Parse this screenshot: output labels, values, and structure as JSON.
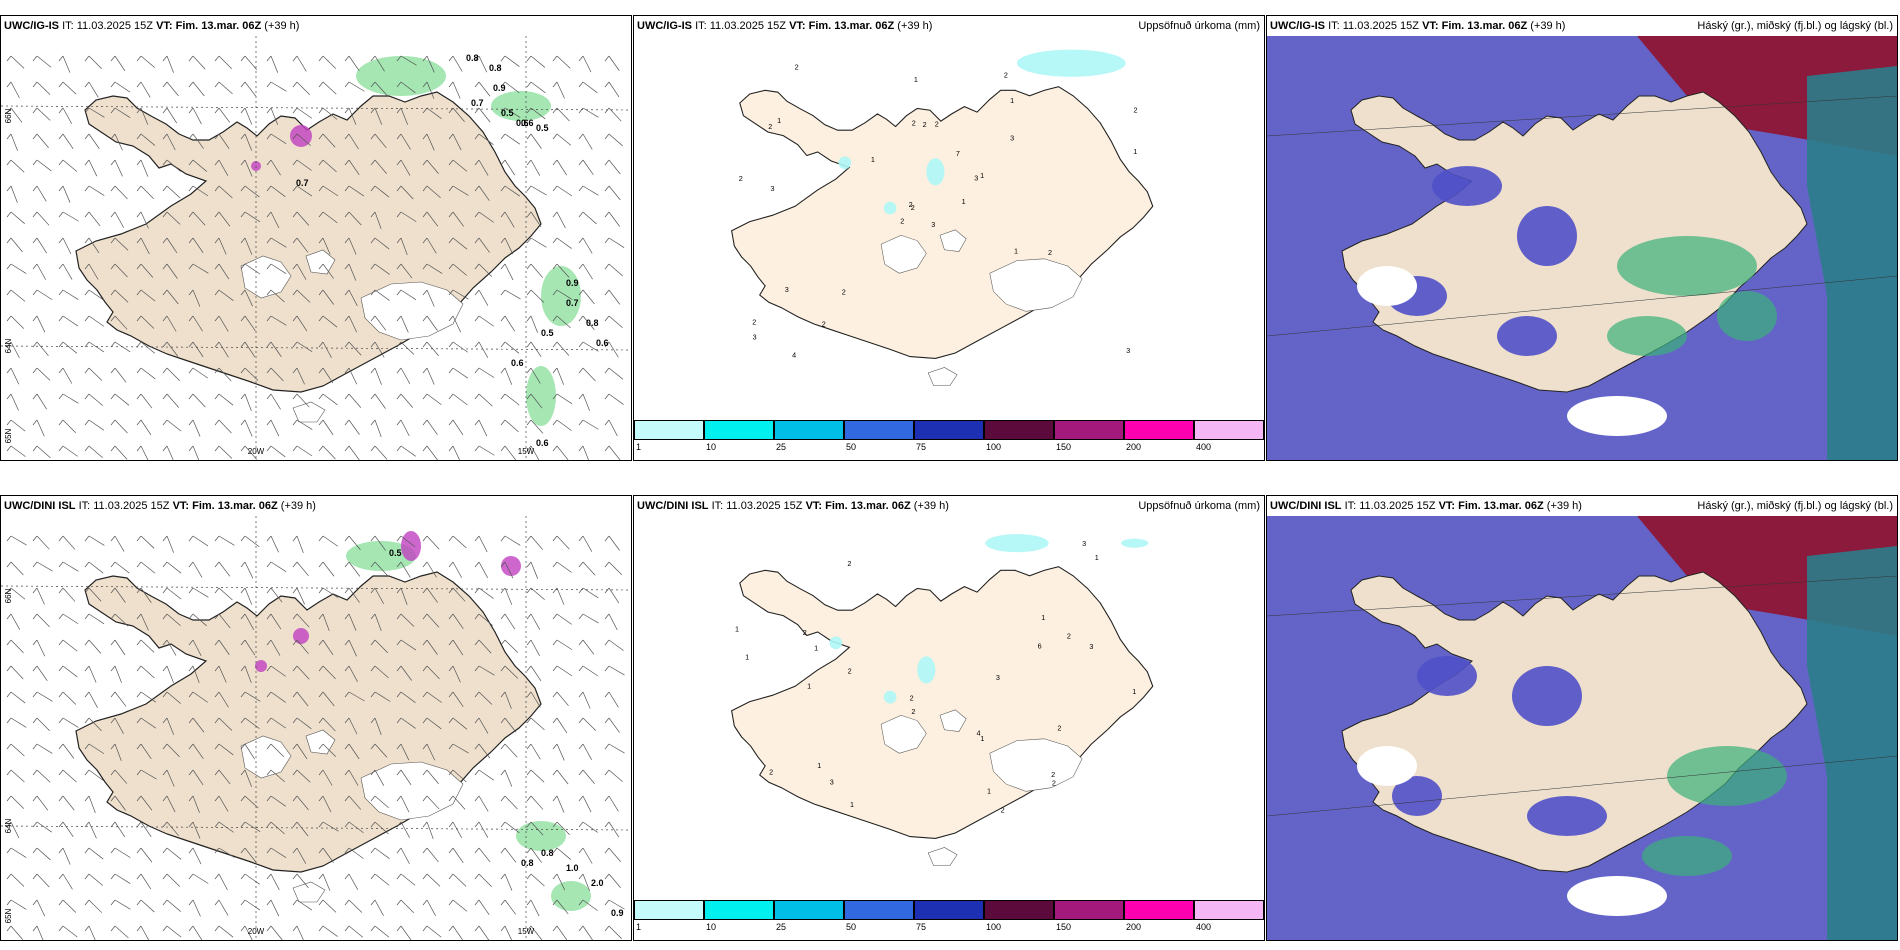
{
  "common": {
    "it_prefix": "IT:",
    "issued": "11.03.2025 15Z",
    "vt_prefix": "VT:",
    "valid": "Fim. 13.mar. 06Z",
    "lead": "(+39 h)"
  },
  "rows": [
    {
      "model": "UWC/IG-IS",
      "panels": [
        {
          "right_title": ""
        },
        {
          "right_title": "Uppsöfnuð úrkoma (mm)"
        },
        {
          "right_title": "Háský (gr.), miðský (fj.bl.) og lágský (bl.)"
        }
      ]
    },
    {
      "model": "UWC/DINI ISL",
      "panels": [
        {
          "right_title": ""
        },
        {
          "right_title": "Uppsöfnuð úrkoma (mm)"
        },
        {
          "right_title": "Háský (gr.), miðský (fj.bl.) og lágský (bl.)"
        }
      ]
    }
  ],
  "lon_labels": [
    "20W",
    "15W"
  ],
  "lat_labels": [
    "66N",
    "64N",
    "65N"
  ],
  "legend": {
    "ticks": [
      "1",
      "10",
      "25",
      "50",
      "75",
      "100",
      "150",
      "200",
      "400"
    ],
    "colors": [
      "#c6fbfb",
      "#00f0f0",
      "#00bfe6",
      "#3069e0",
      "#1d2fb3",
      "#5c0a3c",
      "#a3197c",
      "#ff00b0",
      "#f5b6f5"
    ]
  },
  "colors": {
    "land": "#eee0cc",
    "land_light": "#fdf0e0",
    "sea_cloud": "#6464c8",
    "high_cloud": "#8c1a3c",
    "teal": "#2b7d8a",
    "green": "#8fe0a0"
  },
  "values": {
    "row1_panel1": [
      "0.8",
      "0.8",
      "0.9",
      "0.7",
      "0.5",
      "0.6",
      "0.5",
      "0.6",
      "0.7",
      "0.9",
      "0.7",
      "0.8",
      "0.5",
      "0.6",
      "0.6",
      "0.6"
    ],
    "row1_panel2": [
      "3",
      "2",
      "2",
      "2",
      "3",
      "2",
      "2",
      "2",
      "1",
      "1",
      "2",
      "3",
      "3",
      "2",
      "2",
      "3",
      "4",
      "2",
      "7",
      "3",
      "1",
      "3",
      "2",
      "2",
      "1",
      "2",
      "1",
      "1",
      "2",
      "1",
      "1",
      "2"
    ],
    "row2_panel1": [
      "0.5",
      "0.8",
      "0.8",
      "2.0",
      "0.9",
      "1.0"
    ],
    "row2_panel2": [
      "2",
      "2",
      "1",
      "2",
      "2",
      "1",
      "1",
      "2",
      "2",
      "3",
      "2",
      "1",
      "2",
      "4",
      "6",
      "3",
      "1",
      "1",
      "2",
      "3",
      "2",
      "1",
      "1",
      "2",
      "3",
      "1",
      "1",
      "1"
    ]
  }
}
